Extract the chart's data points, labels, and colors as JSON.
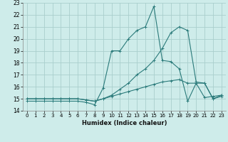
{
  "xlabel": "Humidex (Indice chaleur)",
  "bg_color": "#ceecea",
  "grid_color": "#aacfcd",
  "line_color": "#2a7a7a",
  "xlim_min": -0.5,
  "xlim_max": 23.5,
  "ylim_min": 14,
  "ylim_max": 23,
  "yticks": [
    14,
    15,
    16,
    17,
    18,
    19,
    20,
    21,
    22,
    23
  ],
  "xticks": [
    0,
    1,
    2,
    3,
    4,
    5,
    6,
    7,
    8,
    9,
    10,
    11,
    12,
    13,
    14,
    15,
    16,
    17,
    18,
    19,
    20,
    21,
    22,
    23
  ],
  "s1_x": [
    0,
    1,
    2,
    3,
    4,
    5,
    6,
    7,
    8,
    9,
    10,
    11,
    12,
    13,
    14,
    15,
    16,
    17,
    18,
    19,
    20,
    21,
    22,
    23
  ],
  "s1_y": [
    15.0,
    15.0,
    15.0,
    15.0,
    15.0,
    15.0,
    15.0,
    14.9,
    14.8,
    15.0,
    15.2,
    15.4,
    15.6,
    15.8,
    16.0,
    16.2,
    16.4,
    16.5,
    16.6,
    16.3,
    16.3,
    15.1,
    15.2,
    15.3
  ],
  "s2_x": [
    0,
    1,
    2,
    3,
    4,
    5,
    6,
    7,
    8,
    9,
    10,
    11,
    12,
    13,
    14,
    15,
    16,
    17,
    18,
    19,
    20,
    21,
    22,
    23
  ],
  "s2_y": [
    15.0,
    15.0,
    15.0,
    15.0,
    15.0,
    15.0,
    15.0,
    14.9,
    14.8,
    15.0,
    15.3,
    15.8,
    16.3,
    17.0,
    17.5,
    18.2,
    19.2,
    20.5,
    21.0,
    20.7,
    16.4,
    16.3,
    15.0,
    15.2
  ],
  "s3_x": [
    0,
    1,
    2,
    3,
    4,
    5,
    6,
    7,
    8,
    9,
    10,
    11,
    12,
    13,
    14,
    15,
    16,
    17,
    18,
    19,
    20,
    21,
    22,
    23
  ],
  "s3_y": [
    14.8,
    14.8,
    14.8,
    14.8,
    14.8,
    14.8,
    14.8,
    14.7,
    14.5,
    15.9,
    19.0,
    19.0,
    20.0,
    20.7,
    21.0,
    22.7,
    18.2,
    18.1,
    17.5,
    14.8,
    16.3,
    16.3,
    15.0,
    15.3
  ]
}
